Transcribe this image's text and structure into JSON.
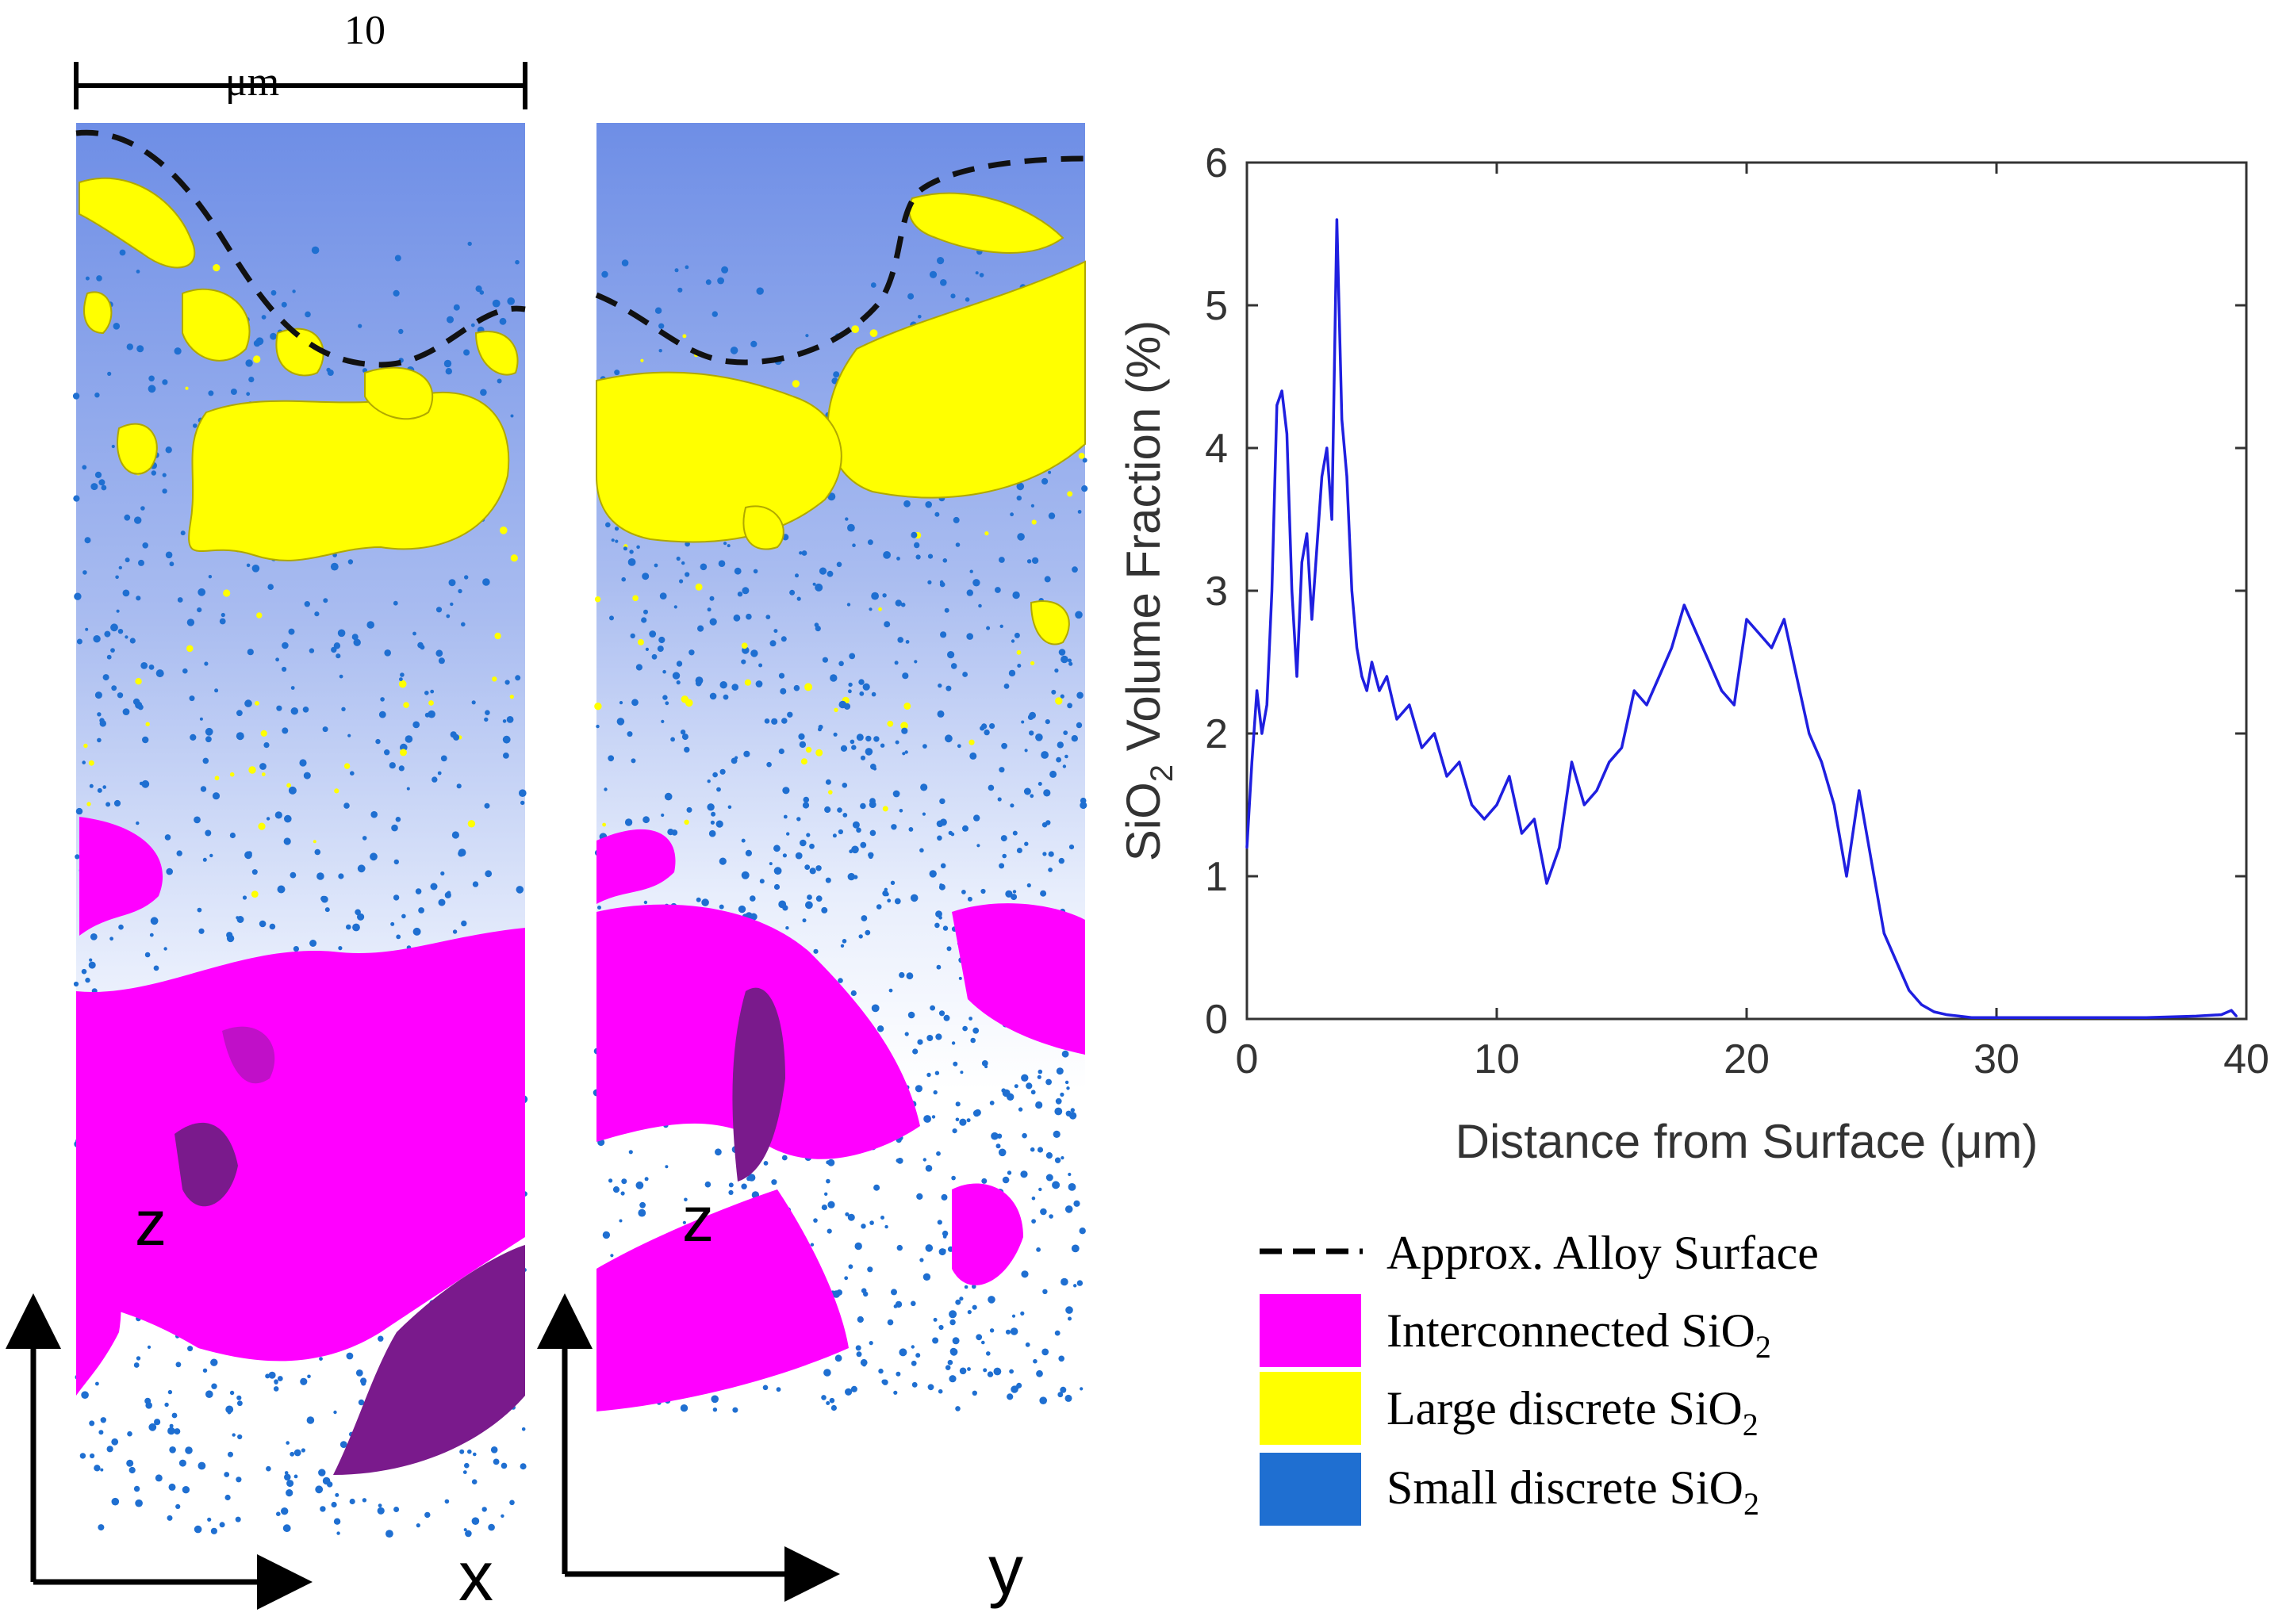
{
  "scale_bar": {
    "value": "10",
    "unit": "μm"
  },
  "panels": [
    {
      "axis_vertical": "z",
      "axis_horizontal": "x"
    },
    {
      "axis_vertical": "z",
      "axis_horizontal": "y"
    }
  ],
  "legend": {
    "items": [
      {
        "label": "Approx. Alloy Surface",
        "kind": "dashed-line",
        "color": "#000000"
      },
      {
        "label": "Interconnected SiO",
        "sub": "2",
        "kind": "swatch",
        "color": "#ff00ff"
      },
      {
        "label": "Large discrete SiO",
        "sub": "2",
        "kind": "swatch",
        "color": "#ffff00"
      },
      {
        "label": "Small discrete SiO",
        "sub": "2",
        "kind": "swatch",
        "color": "#1f6fd1"
      }
    ]
  },
  "colors": {
    "interconnected": "#ff00ff",
    "interconnected_dark": "#7a1a8c",
    "large_discrete": "#ffff00",
    "small_discrete": "#1f6fd1",
    "line": "#1f1fe0",
    "sky_top": "#6e8ee6"
  },
  "chart_data": {
    "type": "line",
    "title": "",
    "xlabel": "Distance from Surface (μm)",
    "ylabel_main": "SiO",
    "ylabel_sub": "2",
    "ylabel_rest": " Volume Fraction (%)",
    "xlim": [
      0,
      40
    ],
    "ylim": [
      0,
      6
    ],
    "xticks": [
      0,
      10,
      20,
      30,
      40
    ],
    "yticks": [
      0,
      1,
      2,
      3,
      4,
      5,
      6
    ],
    "series": [
      {
        "name": "SiO2 volume fraction",
        "x": [
          0,
          0.2,
          0.4,
          0.6,
          0.8,
          1.0,
          1.2,
          1.4,
          1.6,
          1.8,
          2.0,
          2.2,
          2.4,
          2.6,
          2.8,
          3.0,
          3.2,
          3.4,
          3.6,
          3.8,
          4.0,
          4.2,
          4.4,
          4.6,
          4.8,
          5.0,
          5.3,
          5.6,
          6.0,
          6.5,
          7.0,
          7.5,
          8.0,
          8.5,
          9.0,
          9.5,
          10.0,
          10.5,
          11.0,
          11.5,
          12.0,
          12.5,
          13.0,
          13.5,
          14.0,
          14.5,
          15.0,
          15.5,
          16.0,
          16.5,
          17.0,
          17.5,
          18.0,
          18.5,
          19.0,
          19.5,
          20.0,
          20.5,
          21.0,
          21.5,
          22.0,
          22.5,
          23.0,
          23.5,
          24.0,
          24.5,
          25.0,
          25.5,
          26.0,
          26.5,
          27.0,
          27.5,
          28.0,
          28.5,
          29.0,
          30.0,
          32.0,
          34.0,
          36.0,
          38.0,
          39.0,
          39.4,
          39.6
        ],
        "values": [
          1.2,
          1.8,
          2.3,
          2.0,
          2.2,
          3.0,
          4.3,
          4.4,
          4.1,
          3.0,
          2.4,
          3.2,
          3.4,
          2.8,
          3.3,
          3.8,
          4.0,
          3.5,
          5.6,
          4.2,
          3.8,
          3.0,
          2.6,
          2.4,
          2.3,
          2.5,
          2.3,
          2.4,
          2.1,
          2.2,
          1.9,
          2.0,
          1.7,
          1.8,
          1.5,
          1.4,
          1.5,
          1.7,
          1.3,
          1.4,
          0.95,
          1.2,
          1.8,
          1.5,
          1.6,
          1.8,
          1.9,
          2.3,
          2.2,
          2.4,
          2.6,
          2.9,
          2.7,
          2.5,
          2.3,
          2.2,
          2.8,
          2.7,
          2.6,
          2.8,
          2.4,
          2.0,
          1.8,
          1.5,
          1.0,
          1.6,
          1.1,
          0.6,
          0.4,
          0.2,
          0.1,
          0.05,
          0.03,
          0.02,
          0.01,
          0.01,
          0.01,
          0.01,
          0.01,
          0.02,
          0.03,
          0.06,
          0.02
        ]
      }
    ]
  }
}
